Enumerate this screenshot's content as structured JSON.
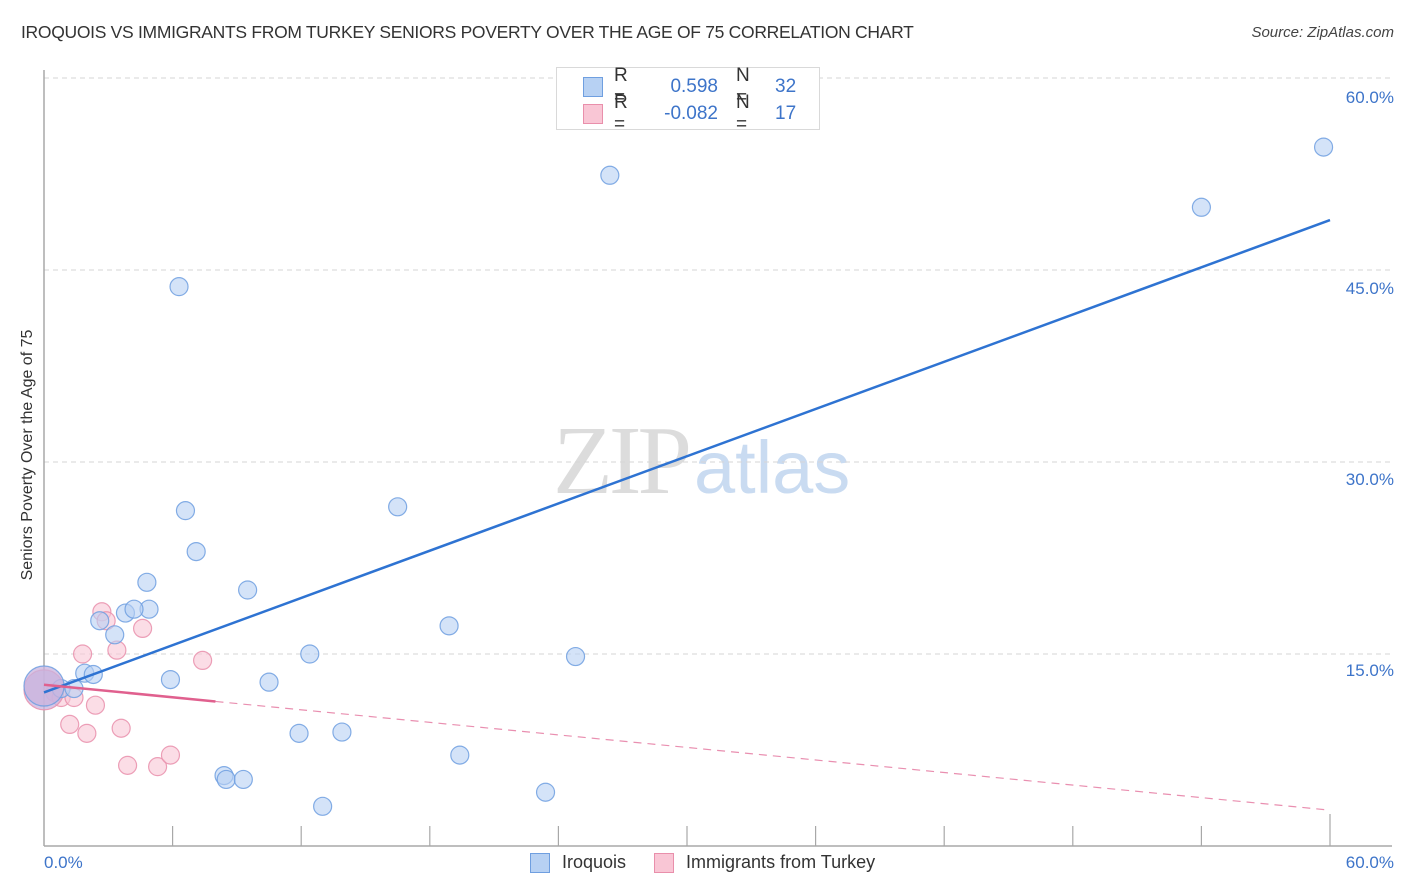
{
  "header": {
    "title": "IROQUOIS VS IMMIGRANTS FROM TURKEY SENIORS POVERTY OVER THE AGE OF 75 CORRELATION CHART",
    "source": "Source: ZipAtlas.com"
  },
  "watermark": {
    "zip": "ZIP",
    "atlas": "atlas"
  },
  "axes": {
    "ylabel": "Seniors Poverty Over the Age of 75",
    "y_ticks": [
      "60.0%",
      "45.0%",
      "30.0%",
      "15.0%"
    ],
    "x_min_label": "0.0%",
    "x_max_label": "60.0%"
  },
  "legend_top": {
    "rows": [
      {
        "r_label": "R =",
        "r_value": "0.598",
        "n_label": "N =",
        "n_value": "32"
      },
      {
        "r_label": "R =",
        "r_value": "-0.082",
        "n_label": "N =",
        "n_value": "17"
      }
    ]
  },
  "legend_bottom": {
    "items": [
      {
        "label": "Iroquois"
      },
      {
        "label": "Immigrants from Turkey"
      }
    ]
  },
  "colors": {
    "iroquois_fill": "#b7d1f3",
    "iroquois_stroke": "#6f9fe0",
    "iroquois_line": "#2e73d2",
    "turkey_fill": "#f9c6d5",
    "turkey_stroke": "#e98fab",
    "turkey_line": "#e0608e",
    "tick_text": "#3d74c9",
    "grid": "#d6d6d6",
    "axis": "#a8a8a8"
  },
  "chart_data": {
    "type": "scatter",
    "title": "IROQUOIS VS IMMIGRANTS FROM TURKEY SENIORS POVERTY OVER THE AGE OF 75 CORRELATION CHART",
    "xlabel": "",
    "ylabel": "Seniors Poverty Over the Age of 75",
    "xlim": [
      0,
      60
    ],
    "ylim": [
      0,
      62
    ],
    "x_tick_labels": [
      "0.0%",
      "60.0%"
    ],
    "y_tick_labels": [
      "15.0%",
      "30.0%",
      "45.0%",
      "60.0%"
    ],
    "y_ticks": [
      15,
      30,
      45,
      60
    ],
    "grid": "horizontal dashed",
    "legend_position": "bottom-center",
    "series": [
      {
        "name": "Iroquois",
        "R": 0.598,
        "N": 32,
        "trendline": {
          "x": [
            0,
            60
          ],
          "y": [
            12.0,
            48.9
          ]
        },
        "points": [
          [
            59.7,
            54.6
          ],
          [
            26.4,
            52.4
          ],
          [
            54.0,
            49.9
          ],
          [
            6.3,
            43.7
          ],
          [
            16.5,
            26.5
          ],
          [
            6.6,
            26.2
          ],
          [
            7.1,
            23.0
          ],
          [
            9.5,
            20.0
          ],
          [
            4.8,
            20.6
          ],
          [
            4.9,
            18.5
          ],
          [
            3.8,
            18.2
          ],
          [
            4.2,
            18.5
          ],
          [
            2.6,
            17.6
          ],
          [
            18.9,
            17.2
          ],
          [
            3.3,
            16.5
          ],
          [
            24.8,
            14.8
          ],
          [
            12.4,
            15.0
          ],
          [
            1.9,
            13.5
          ],
          [
            2.3,
            13.4
          ],
          [
            5.9,
            13.0
          ],
          [
            10.5,
            12.8
          ],
          [
            0.8,
            12.3
          ],
          [
            1.4,
            12.3
          ],
          [
            11.9,
            8.8
          ],
          [
            13.9,
            8.9
          ],
          [
            19.4,
            7.1
          ],
          [
            8.4,
            5.5
          ],
          [
            8.5,
            5.2
          ],
          [
            9.3,
            5.2
          ],
          [
            23.4,
            4.2
          ],
          [
            13.0,
            3.1
          ],
          [
            0.0,
            12.5
          ]
        ]
      },
      {
        "name": "Immigrants from Turkey",
        "R": -0.082,
        "N": 17,
        "trendline": {
          "x": [
            0,
            60
          ],
          "y": [
            12.6,
            2.8
          ],
          "solid_until_x": 8.0
        },
        "points": [
          [
            2.7,
            18.3
          ],
          [
            2.9,
            17.6
          ],
          [
            4.6,
            17.0
          ],
          [
            3.4,
            15.3
          ],
          [
            1.8,
            15.0
          ],
          [
            7.4,
            14.5
          ],
          [
            0.5,
            12.0
          ],
          [
            0.8,
            11.6
          ],
          [
            1.4,
            11.6
          ],
          [
            2.4,
            11.0
          ],
          [
            1.2,
            9.5
          ],
          [
            2.0,
            8.8
          ],
          [
            3.6,
            9.2
          ],
          [
            3.9,
            6.3
          ],
          [
            5.3,
            6.2
          ],
          [
            5.9,
            7.1
          ],
          [
            0.0,
            12.2
          ]
        ]
      }
    ]
  }
}
